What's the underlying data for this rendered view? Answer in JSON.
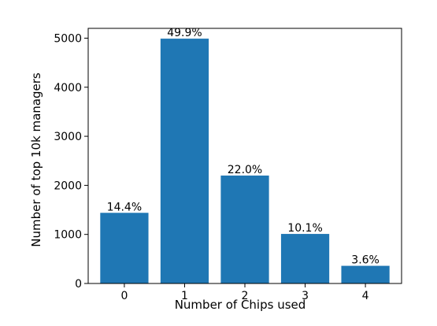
{
  "colors": {
    "bar": "#1f77b4",
    "axis": "#000000",
    "background": "#ffffff"
  },
  "chart_data": {
    "type": "bar",
    "title": "",
    "xlabel": "Number of Chips used",
    "ylabel": "Number of top 10k managers",
    "categories": [
      "0",
      "1",
      "2",
      "3",
      "4"
    ],
    "values": [
      1440,
      4990,
      2200,
      1010,
      360
    ],
    "data_labels": [
      "14.4%",
      "49.9%",
      "22.0%",
      "10.1%",
      "3.6%"
    ],
    "ylim": [
      0,
      5200
    ],
    "yticks": [
      0,
      1000,
      2000,
      3000,
      4000,
      5000
    ],
    "ytick_labels": [
      "0",
      "1000",
      "2000",
      "3000",
      "4000",
      "5000"
    ],
    "grid": false,
    "legend": "none"
  }
}
